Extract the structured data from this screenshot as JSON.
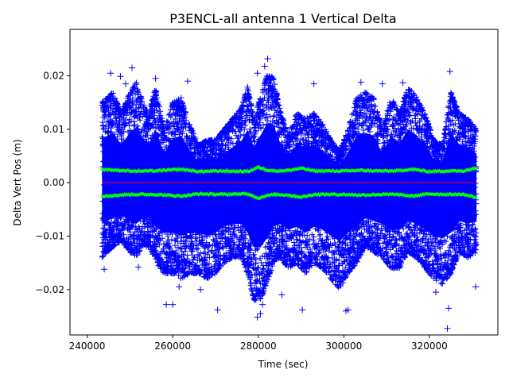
{
  "chart_data": {
    "type": "scatter",
    "title": "P3ENCL-all antenna 1 Vertical Delta",
    "xlabel": "Time (sec)",
    "ylabel": "Delta Vert Pos (m)",
    "xlim": [
      236000,
      336000
    ],
    "ylim": [
      -0.0285,
      0.0287
    ],
    "xticks": [
      240000,
      260000,
      280000,
      300000,
      320000
    ],
    "xtick_labels": [
      "240000",
      "260000",
      "280000",
      "300000",
      "320000"
    ],
    "yticks": [
      -0.02,
      -0.01,
      0.0,
      0.01,
      0.02
    ],
    "ytick_labels": [
      "−0.02",
      "−0.01",
      "0.00",
      "0.01",
      "0.02"
    ],
    "grid": false,
    "x_range_data": [
      243500,
      331000
    ],
    "series": [
      {
        "role": "delta",
        "marker": "+",
        "color": "#0000ff",
        "envelope": {
          "x": [
            243500,
            246000,
            248000,
            250000,
            251500,
            253000,
            254500,
            256000,
            258000,
            260000,
            262000,
            264000,
            266000,
            268000,
            270000,
            272000,
            274000,
            276000,
            277500,
            279000,
            280500,
            282000,
            283500,
            285000,
            287000,
            289000,
            291000,
            293000,
            295000,
            297000,
            299000,
            301000,
            303000,
            305000,
            307000,
            309000,
            311000,
            313000,
            315000,
            317000,
            319000,
            321000,
            323000,
            325000,
            327000,
            329000,
            331000
          ],
          "upper": [
            0.015,
            0.017,
            0.013,
            0.017,
            0.019,
            0.015,
            0.013,
            0.018,
            0.01,
            0.015,
            0.016,
            0.011,
            0.007,
            0.008,
            0.008,
            0.01,
            0.012,
            0.014,
            0.018,
            0.012,
            0.016,
            0.02,
            0.02,
            0.014,
            0.009,
            0.013,
            0.012,
            0.013,
            0.011,
            0.008,
            0.006,
            0.01,
            0.016,
            0.017,
            0.016,
            0.01,
            0.016,
            0.013,
            0.018,
            0.016,
            0.013,
            0.008,
            0.007,
            0.017,
            0.013,
            0.012,
            0.01
          ],
          "lower": [
            -0.014,
            -0.012,
            -0.011,
            -0.013,
            -0.014,
            -0.012,
            -0.012,
            -0.015,
            -0.017,
            -0.017,
            -0.018,
            -0.017,
            -0.017,
            -0.018,
            -0.017,
            -0.015,
            -0.014,
            -0.014,
            -0.017,
            -0.022,
            -0.022,
            -0.019,
            -0.015,
            -0.014,
            -0.016,
            -0.015,
            -0.017,
            -0.015,
            -0.016,
            -0.018,
            -0.02,
            -0.017,
            -0.015,
            -0.012,
            -0.013,
            -0.014,
            -0.016,
            -0.016,
            -0.013,
            -0.014,
            -0.016,
            -0.018,
            -0.019,
            -0.017,
            -0.013,
            -0.014,
            -0.013
          ]
        },
        "outliers": [
          {
            "x": 245500,
            "y": 0.0205
          },
          {
            "x": 247800,
            "y": 0.0199
          },
          {
            "x": 250500,
            "y": 0.0215
          },
          {
            "x": 249000,
            "y": 0.0185
          },
          {
            "x": 256000,
            "y": 0.0195
          },
          {
            "x": 263500,
            "y": 0.019
          },
          {
            "x": 279800,
            "y": 0.0205
          },
          {
            "x": 282200,
            "y": 0.0232
          },
          {
            "x": 281500,
            "y": 0.0218
          },
          {
            "x": 293000,
            "y": 0.0185
          },
          {
            "x": 304000,
            "y": 0.0188
          },
          {
            "x": 309000,
            "y": 0.0185
          },
          {
            "x": 313800,
            "y": 0.0187
          },
          {
            "x": 324800,
            "y": 0.0208
          },
          {
            "x": 244000,
            "y": -0.0162
          },
          {
            "x": 252000,
            "y": -0.0158
          },
          {
            "x": 258500,
            "y": -0.0228
          },
          {
            "x": 260000,
            "y": -0.0228
          },
          {
            "x": 261500,
            "y": -0.0195
          },
          {
            "x": 270500,
            "y": -0.0238
          },
          {
            "x": 279800,
            "y": -0.0252
          },
          {
            "x": 280500,
            "y": -0.0245
          },
          {
            "x": 281000,
            "y": -0.0228
          },
          {
            "x": 290300,
            "y": -0.0238
          },
          {
            "x": 300500,
            "y": -0.024
          },
          {
            "x": 301000,
            "y": -0.0238
          },
          {
            "x": 321500,
            "y": -0.0205
          },
          {
            "x": 324500,
            "y": -0.0235
          },
          {
            "x": 324200,
            "y": -0.0273
          },
          {
            "x": 330800,
            "y": -0.0195
          },
          {
            "x": 285500,
            "y": -0.021
          },
          {
            "x": 266500,
            "y": -0.02
          }
        ]
      },
      {
        "role": "zero-line",
        "color": "#ff0000",
        "y": 0.0
      },
      {
        "role": "sigma-band",
        "marker": "+",
        "color": "#00ff00",
        "x": [
          243500,
          250000,
          256000,
          262000,
          266000,
          272000,
          276000,
          278000,
          280000,
          282000,
          284000,
          287000,
          290000,
          293000,
          296000,
          300000,
          304000,
          308000,
          312000,
          316000,
          320000,
          324000,
          328000,
          331000
        ],
        "upper": [
          0.0025,
          0.0022,
          0.0022,
          0.0025,
          0.0021,
          0.0022,
          0.0021,
          0.0022,
          0.0029,
          0.0024,
          0.0022,
          0.0023,
          0.0027,
          0.0022,
          0.0022,
          0.0022,
          0.0023,
          0.0022,
          0.0022,
          0.0025,
          0.0021,
          0.0022,
          0.0022,
          0.0028
        ],
        "lower": [
          -0.0025,
          -0.0022,
          -0.0022,
          -0.0025,
          -0.0021,
          -0.0022,
          -0.0021,
          -0.0022,
          -0.0029,
          -0.0024,
          -0.0022,
          -0.0023,
          -0.0027,
          -0.0022,
          -0.0022,
          -0.0022,
          -0.0023,
          -0.0022,
          -0.0022,
          -0.0025,
          -0.0021,
          -0.0022,
          -0.0022,
          -0.0028
        ]
      }
    ]
  }
}
